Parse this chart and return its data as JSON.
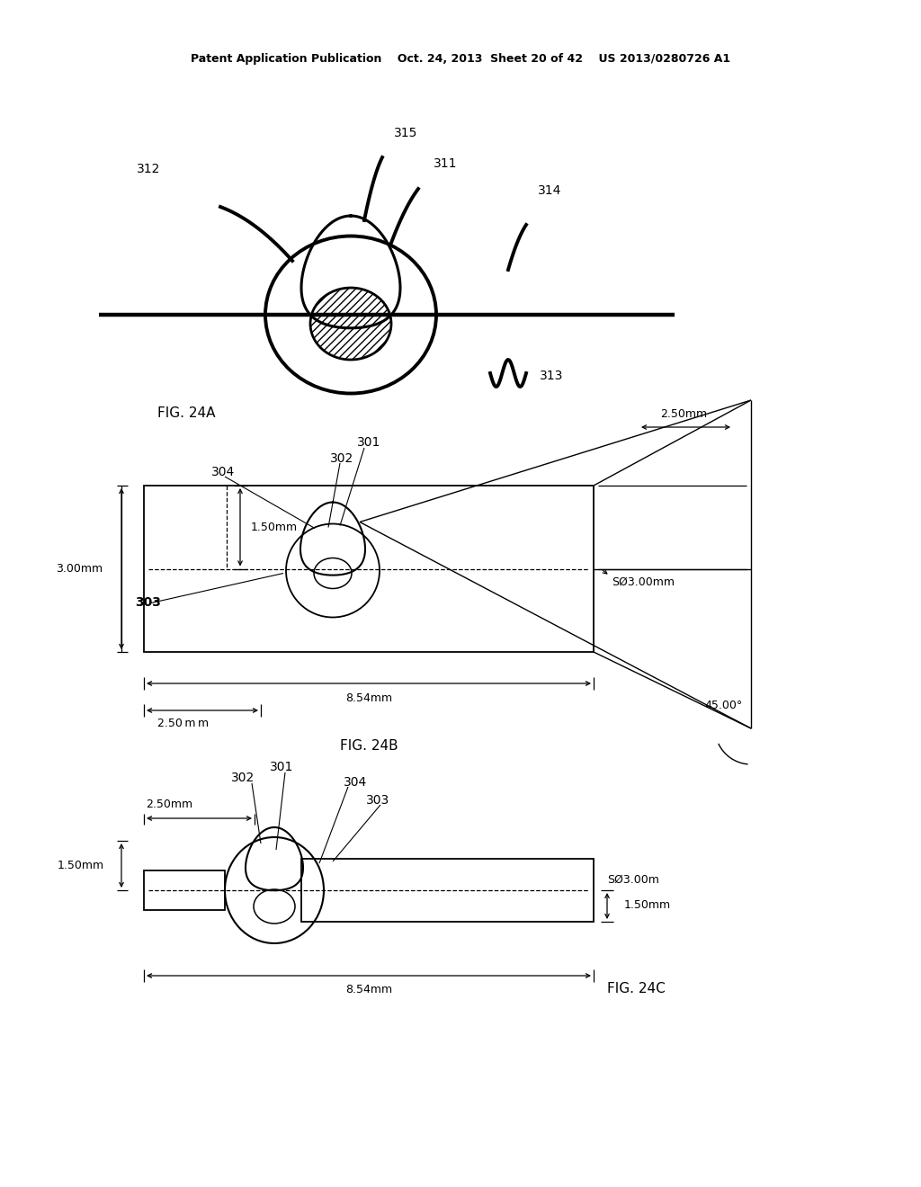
{
  "header": "Patent Application Publication    Oct. 24, 2013  Sheet 20 of 42    US 2013/0280726 A1",
  "fig24a_label": "FIG. 24A",
  "fig24b_label": "FIG. 24B",
  "fig24c_label": "FIG. 24C",
  "bg_color": "#ffffff",
  "lc": "#000000",
  "gray": "#888888"
}
